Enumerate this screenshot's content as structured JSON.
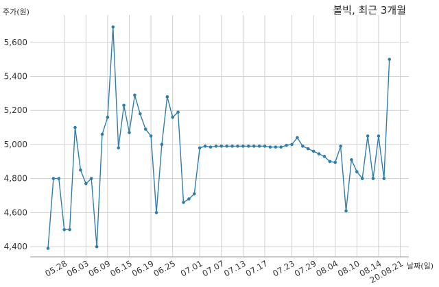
{
  "chart_data": {
    "type": "line",
    "title": "볼빅, 최근 3개월",
    "xlabel": "날짜(일)",
    "ylabel": "주가(원)",
    "ylim": [
      4340,
      5760
    ],
    "yticks": [
      4400,
      4600,
      4800,
      5000,
      5200,
      5400,
      5600
    ],
    "ytick_labels": [
      "4,400",
      "4,600",
      "4,800",
      "5,000",
      "5,200",
      "5,400",
      "5,600"
    ],
    "xtick_labels": [
      "05.28",
      "06.03",
      "06.09",
      "06.15",
      "06.19",
      "06.25",
      "07.01",
      "07.07",
      "07.13",
      "07.17",
      "07.23",
      "07.29",
      "08.04",
      "08.10",
      "08.14",
      "20.08.21"
    ],
    "xtick_index": [
      3,
      7,
      11,
      15,
      19,
      23,
      28,
      32,
      36,
      40,
      45,
      49,
      53,
      57,
      61,
      65
    ],
    "grid": true,
    "color": "#2f7dab",
    "series": [
      {
        "values": [
          4390,
          4800,
          4800,
          4500,
          4500,
          5100,
          4850,
          4770,
          4800,
          4400,
          5060,
          5160,
          5690,
          4980,
          5230,
          5070,
          5290,
          5180,
          5090,
          5050,
          4600,
          5000,
          5280,
          5160,
          5190,
          4660,
          4680,
          4710,
          4980,
          4990,
          4985,
          4990,
          4990,
          4990,
          4990,
          4990,
          4990,
          4990,
          4990,
          4990,
          4990,
          4985,
          4985,
          4985,
          4995,
          5000,
          5040,
          4990,
          4975,
          4960,
          4945,
          4930,
          4900,
          4895,
          4990,
          4610,
          4910,
          4840,
          4800,
          5050,
          4800,
          5050,
          4800,
          5500
        ]
      }
    ]
  }
}
